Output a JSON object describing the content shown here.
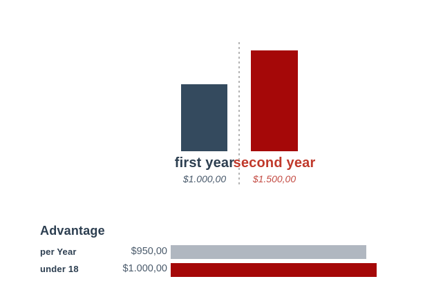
{
  "colors": {
    "first_bar": "#344a5e",
    "second_bar": "#a50808",
    "gray_bar": "#b0b7c0",
    "first_label_text": "#2c3e50",
    "second_label_text": "#c0392b",
    "first_value_text": "#47586a",
    "second_value_text": "#c34a42",
    "heading_text": "#2c3e50",
    "row_label_text": "#2c3e50",
    "row_value_text": "#4a5a6b",
    "divider": "#b4b4b4"
  },
  "chart_data": [
    {
      "type": "bar",
      "orientation": "vertical",
      "title": "",
      "categories": [
        "first year",
        "second year"
      ],
      "values": [
        1000,
        1500
      ],
      "value_labels": [
        "$1.000,00",
        "$1.500,00"
      ],
      "bar_colors": [
        "#344a5e",
        "#a50808"
      ],
      "ylim": [
        0,
        1500
      ],
      "grid": false,
      "legend": "none",
      "notes": "two bottom-aligned bars separated by a vertical dotted divider; category name and italic currency value below each bar"
    },
    {
      "type": "bar",
      "orientation": "horizontal",
      "title": "Advantage",
      "categories": [
        "per Year",
        "under 18"
      ],
      "values": [
        950,
        1000
      ],
      "value_labels": [
        "$950,00",
        "$1.000,00"
      ],
      "bar_colors": [
        "#b0b7c0",
        "#a50808"
      ],
      "xlim": [
        0,
        1000
      ],
      "grid": false,
      "legend": "none",
      "notes": "row label left, right-aligned currency value, then bar whose width is proportional to value"
    }
  ]
}
